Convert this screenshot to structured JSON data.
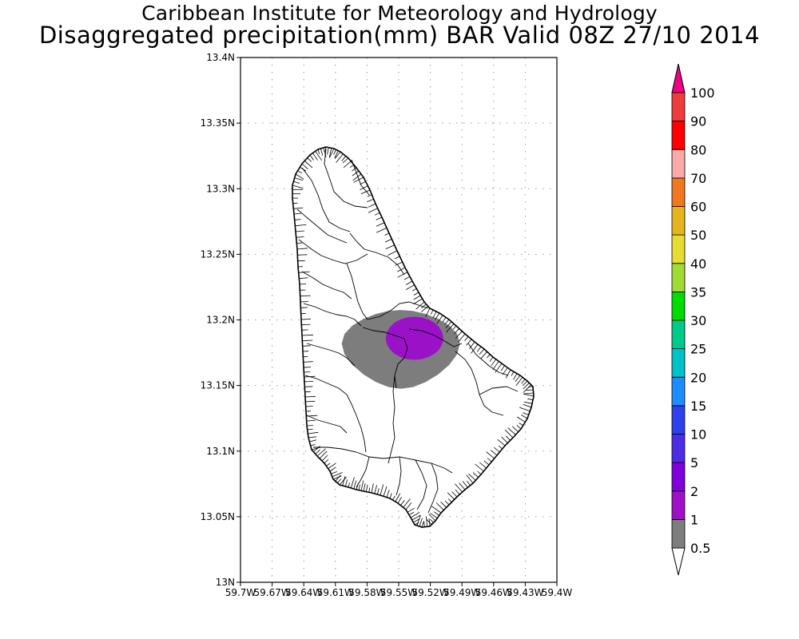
{
  "header": {
    "line1": "Caribbean Institute for Meteorology and Hydrology",
    "line2": "Disaggregated precipitation(mm) BAR Valid 08Z 27/10 2014"
  },
  "map": {
    "lat_ticks": [
      "13N",
      "13.05N",
      "13.1N",
      "13.15N",
      "13.2N",
      "13.25N",
      "13.3N",
      "13.35N",
      "13.4N"
    ],
    "lon_ticks": [
      "59.7W",
      "59.67W",
      "59.64W",
      "59.61W",
      "59.58W",
      "59.55W",
      "59.52W",
      "59.49W",
      "59.46W",
      "59.43W",
      "59.4W"
    ],
    "lat_range": [
      13.0,
      13.4
    ],
    "lon_range": [
      -59.7,
      -59.4
    ],
    "gridlines": true,
    "island": "Barbados",
    "precip_areas": [
      {
        "level": "0.5-1 mm",
        "color": "#7d7d7d",
        "center": [
          -59.548,
          13.182
        ]
      },
      {
        "level": "1-2 mm",
        "color": "#9b11c8",
        "center": [
          -59.535,
          13.186
        ]
      }
    ]
  },
  "colorbar": {
    "labels": [
      "0.5",
      "1",
      "2",
      "5",
      "10",
      "15",
      "20",
      "25",
      "30",
      "35",
      "40",
      "50",
      "60",
      "70",
      "80",
      "90",
      "100"
    ],
    "colors": [
      "#7d7d7d",
      "#a00fc8",
      "#8200dc",
      "#4b2de6",
      "#2d41eb",
      "#1e8cff",
      "#00c2c8",
      "#00c98c",
      "#00dc00",
      "#a0dc32",
      "#e6dc32",
      "#e6b41e",
      "#f07820",
      "#faaaaa",
      "#ff0000",
      "#f03c3c"
    ],
    "top_arrow_color": "#f00082",
    "bottom_arrow_color": "#ffffff"
  }
}
